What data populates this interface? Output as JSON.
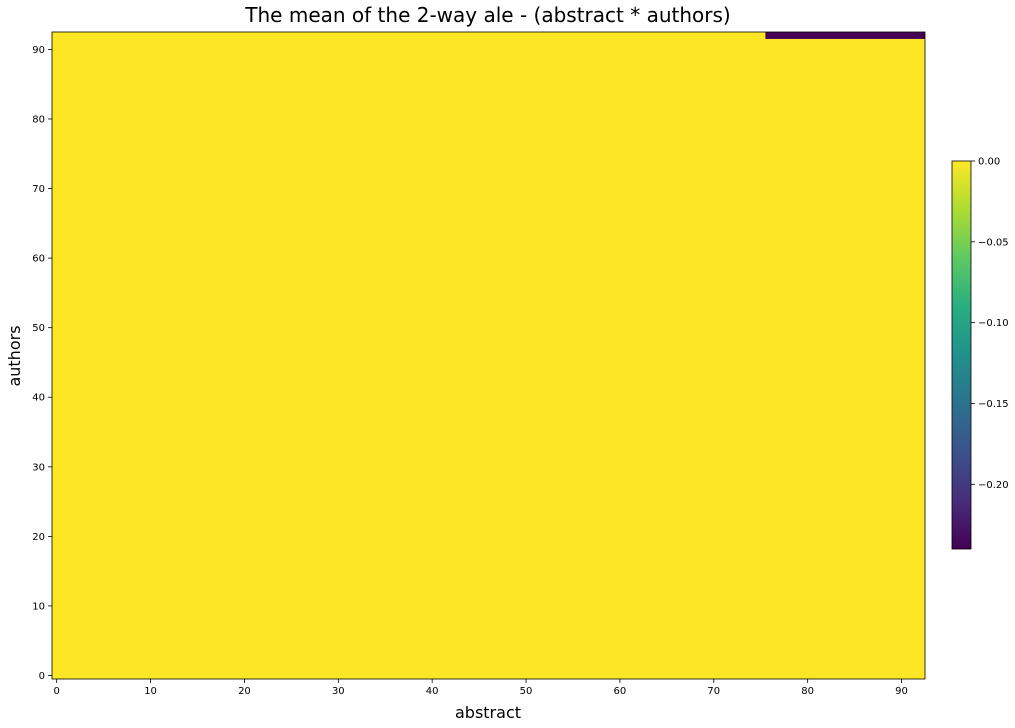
{
  "chart_data": {
    "type": "heatmap",
    "title": "The mean of the 2-way ale - (abstract * authors)",
    "xlabel": "abstract",
    "ylabel": "authors",
    "xlim": [
      -0.5,
      92.5
    ],
    "ylim": [
      -0.5,
      92.5
    ],
    "x_ticks": [
      0,
      10,
      20,
      30,
      40,
      50,
      60,
      70,
      80,
      90
    ],
    "y_ticks": [
      0,
      10,
      20,
      30,
      40,
      50,
      60,
      70,
      80,
      90
    ],
    "colormap": "viridis",
    "colorbar": {
      "min": -0.24,
      "max": 0.0,
      "ticks": [
        0.0,
        -0.05,
        -0.1,
        -0.15,
        -0.2
      ],
      "tick_labels": [
        "0.00",
        "−0.05",
        "−0.10",
        "−0.15",
        "−0.20"
      ]
    },
    "background_value": 0.0,
    "regions": [
      {
        "x_range": [
          75.5,
          92.5
        ],
        "y_range": [
          91.5,
          92.5
        ],
        "value": -0.24
      }
    ]
  }
}
